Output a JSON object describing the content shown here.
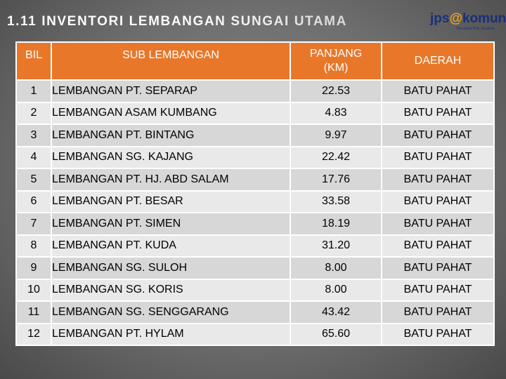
{
  "title": "1.11 INVENTORI LEMBANGAN SUNGAI UTAMA",
  "logo": {
    "main_a": "jps",
    "main_at": "@",
    "main_b": "komuniti",
    "sub": "Bersama Kita Jayakan"
  },
  "table": {
    "headers": {
      "bil": "BIL",
      "sub": "SUB LEMBANGAN",
      "panjang_line1": "PANJANG",
      "panjang_line2": "(KM)",
      "daerah": "DAERAH"
    },
    "rows": [
      {
        "bil": "1",
        "sub": "LEMBANGAN PT. SEPARAP",
        "panjang": "22.53",
        "daerah": "BATU PAHAT"
      },
      {
        "bil": "2",
        "sub": "LEMBANGAN ASAM KUMBANG",
        "panjang": "4.83",
        "daerah": "BATU PAHAT"
      },
      {
        "bil": "3",
        "sub": "LEMBANGAN PT. BINTANG",
        "panjang": "9.97",
        "daerah": "BATU PAHAT"
      },
      {
        "bil": "4",
        "sub": "LEMBANGAN SG. KAJANG",
        "panjang": "22.42",
        "daerah": "BATU PAHAT"
      },
      {
        "bil": "5",
        "sub": "LEMBANGAN PT. HJ. ABD SALAM",
        "panjang": "17.76",
        "daerah": "BATU PAHAT"
      },
      {
        "bil": "6",
        "sub": "LEMBANGAN PT. BESAR",
        "panjang": "33.58",
        "daerah": "BATU PAHAT"
      },
      {
        "bil": "7",
        "sub": "LEMBANGAN PT. SIMEN",
        "panjang": "18.19",
        "daerah": "BATU PAHAT"
      },
      {
        "bil": "8",
        "sub": "LEMBANGAN PT. KUDA",
        "panjang": "31.20",
        "daerah": "BATU PAHAT"
      },
      {
        "bil": "9",
        "sub": "LEMBANGAN SG. SULOH",
        "panjang": "8.00",
        "daerah": "BATU PAHAT"
      },
      {
        "bil": "10",
        "sub": "LEMBANGAN SG. KORIS",
        "panjang": "8.00",
        "daerah": "BATU PAHAT"
      },
      {
        "bil": "11",
        "sub": "LEMBANGAN SG. SENGGARANG",
        "panjang": "43.42",
        "daerah": "BATU PAHAT"
      },
      {
        "bil": "12",
        "sub": "LEMBANGAN PT. HYLAM",
        "panjang": "65.60",
        "daerah": "BATU PAHAT"
      }
    ]
  }
}
